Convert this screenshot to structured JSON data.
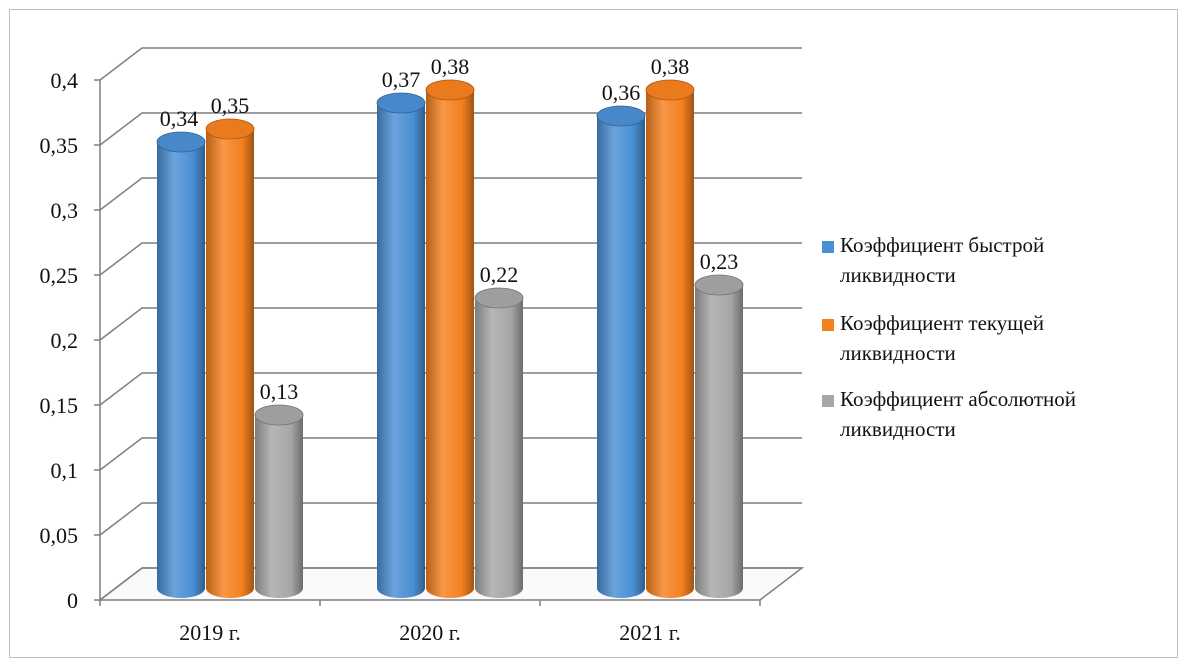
{
  "chart_data": {
    "type": "bar",
    "categories": [
      "2019 г.",
      "2020 г.",
      "2021 г."
    ],
    "series": [
      {
        "name": "Коэффициент быстрой ликвидности",
        "values": [
          0.34,
          0.37,
          0.36
        ],
        "labels": [
          "0,34",
          "0,37",
          "0,36"
        ],
        "color": "#4a8fd4"
      },
      {
        "name": "Коэффициент текущей ликвидности",
        "values": [
          0.35,
          0.38,
          0.38
        ],
        "labels": [
          "0,35",
          "0,38",
          "0,38"
        ],
        "color": "#f5801f"
      },
      {
        "name": "Коэффициент абсолютной ликвидности",
        "values": [
          0.13,
          0.22,
          0.23
        ],
        "labels": [
          "0,13",
          "0,22",
          "0,23"
        ],
        "color": "#a6a6a6"
      }
    ],
    "legend_lines": [
      [
        "Коэффициент быстрой",
        "ликвидности"
      ],
      [
        "Коэффициент текущей",
        "ликвидности"
      ],
      [
        "Коэффициент абсолютной",
        "ликвидности"
      ]
    ],
    "yticks": [
      0,
      0.05,
      0.1,
      0.15,
      0.2,
      0.25,
      0.3,
      0.35,
      0.4
    ],
    "ytick_labels": [
      "0",
      "0,05",
      "0,1",
      "0,15",
      "0,2",
      "0,25",
      "0,3",
      "0,35",
      "0,4"
    ],
    "ylim": [
      0,
      0.4
    ],
    "grid": true,
    "style": "3d-cylinder",
    "legend_position": "right"
  }
}
